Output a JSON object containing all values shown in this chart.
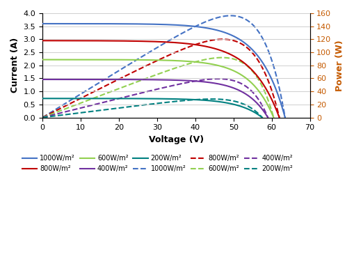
{
  "irradiance_levels": [
    1000,
    800,
    600,
    400,
    200
  ],
  "colors": {
    "1000": "#4472C4",
    "800": "#C00000",
    "600": "#92D050",
    "400": "#7030A0",
    "200": "#008080"
  },
  "iv_params": {
    "1000": {
      "Isc": 3.6,
      "Voc": 63.5,
      "Imp": 3.42,
      "Vmp": 43.5,
      "n": 1.3
    },
    "800": {
      "Isc": 2.95,
      "Voc": 62.0,
      "Imp": 2.72,
      "Vmp": 43.0,
      "n": 1.3
    },
    "600": {
      "Isc": 2.22,
      "Voc": 60.5,
      "Imp": 2.1,
      "Vmp": 42.0,
      "n": 1.3
    },
    "400": {
      "Isc": 1.46,
      "Voc": 59.0,
      "Imp": 1.38,
      "Vmp": 41.5,
      "n": 1.3
    },
    "200": {
      "Isc": 0.73,
      "Voc": 57.5,
      "Imp": 0.68,
      "Vmp": 40.5,
      "n": 1.3
    }
  },
  "xlim": [
    0,
    70
  ],
  "ylim_current": [
    0,
    4.0
  ],
  "ylim_power": [
    0,
    160
  ],
  "xlabel": "Voltage (V)",
  "ylabel_left": "Current (A)",
  "ylabel_right": "Power (W)",
  "yticks_current": [
    0.0,
    0.5,
    1.0,
    1.5,
    2.0,
    2.5,
    3.0,
    3.5,
    4.0
  ],
  "yticks_power": [
    0,
    20,
    40,
    60,
    80,
    100,
    120,
    140,
    160
  ],
  "xticks": [
    0,
    10,
    20,
    30,
    40,
    50,
    60,
    70
  ],
  "legend_labels": [
    "1000W/m²",
    "800W/m²",
    "600W/m²",
    "400W/m²",
    "200W/m²"
  ],
  "background_color": "#FFFFFF",
  "grid_color": "#C8C8C8"
}
